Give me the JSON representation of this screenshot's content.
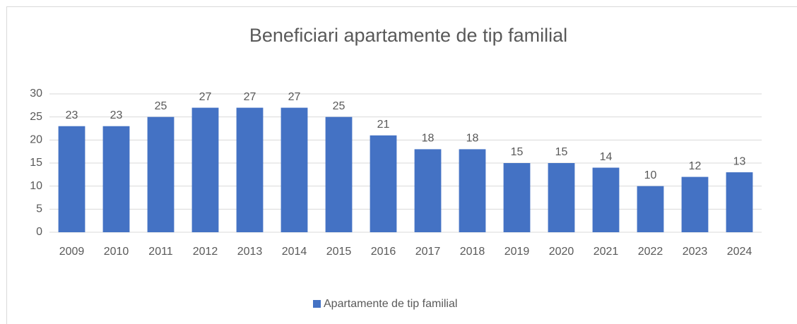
{
  "chart_data": {
    "type": "bar",
    "title": "Beneficiari apartamente de tip familial",
    "categories": [
      "2009",
      "2010",
      "2011",
      "2012",
      "2013",
      "2014",
      "2015",
      "2016",
      "2017",
      "2018",
      "2019",
      "2020",
      "2021",
      "2022",
      "2023",
      "2024"
    ],
    "series": [
      {
        "name": "Apartamente de tip familial",
        "color": "#4472c4",
        "values": [
          23,
          23,
          25,
          27,
          27,
          27,
          25,
          21,
          18,
          18,
          15,
          15,
          14,
          10,
          12,
          13
        ]
      }
    ],
    "ylim": [
      0,
      30
    ],
    "yticks": [
      0,
      5,
      10,
      15,
      20,
      25,
      30
    ],
    "grid": true,
    "legend": "bottom"
  }
}
